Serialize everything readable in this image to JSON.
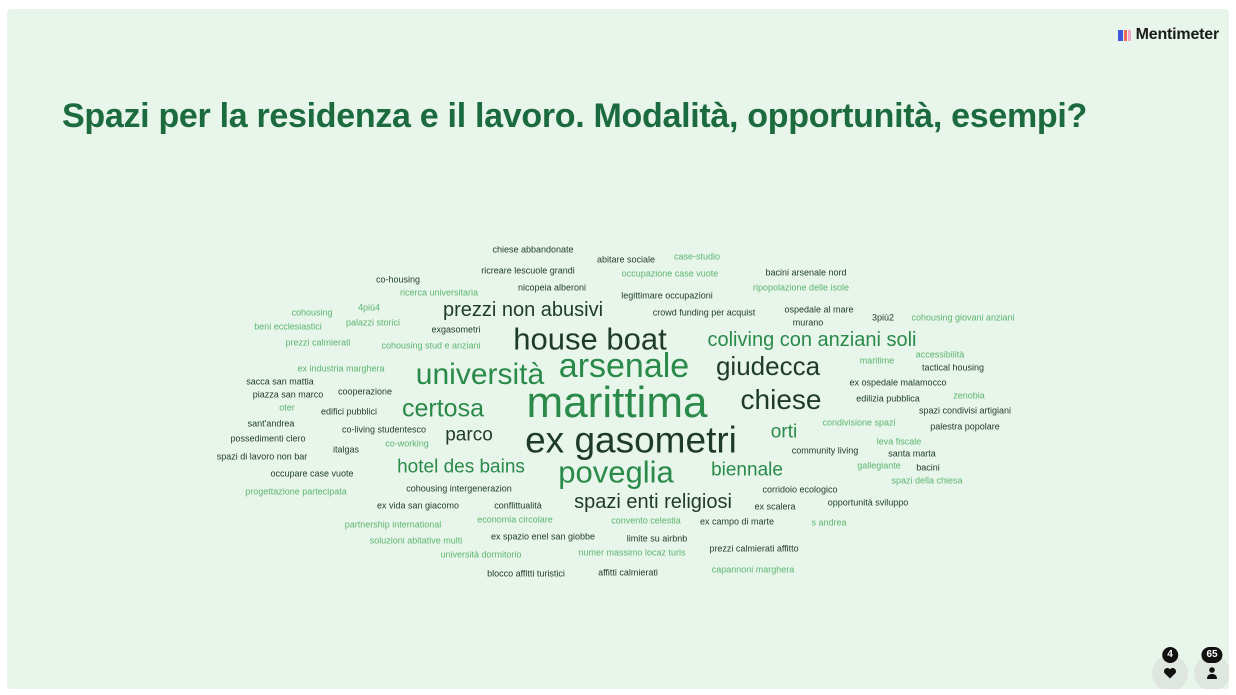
{
  "app": {
    "brand": "Mentimeter"
  },
  "slide": {
    "title": "Spazi per la residenza e il lavoro. Modalità, opportunità, esempi?"
  },
  "colors": {
    "background": "#e8f5ea",
    "title": "#1c6b3f",
    "dark": "#1e3b2a",
    "mid": "#2a8a4a",
    "light": "#5bb56f"
  },
  "words": [
    {
      "text": "marittima",
      "size": 44,
      "color": "mid"
    },
    {
      "text": "ex gasometri",
      "size": 37,
      "color": "dark"
    },
    {
      "text": "arsenale",
      "size": 34,
      "color": "mid"
    },
    {
      "text": "house boat",
      "size": 31,
      "color": "dark"
    },
    {
      "text": "poveglia",
      "size": 31,
      "color": "mid"
    },
    {
      "text": "università",
      "size": 30,
      "color": "mid"
    },
    {
      "text": "giudecca",
      "size": 26,
      "color": "dark"
    },
    {
      "text": "chiese",
      "size": 28,
      "color": "dark"
    },
    {
      "text": "certosa",
      "size": 25,
      "color": "mid"
    },
    {
      "text": "coliving con anziani soli",
      "size": 20,
      "color": "mid"
    },
    {
      "text": "prezzi non abusivi",
      "size": 20,
      "color": "dark"
    },
    {
      "text": "spazi enti religiosi",
      "size": 20,
      "color": "dark"
    },
    {
      "text": "hotel des bains",
      "size": 19,
      "color": "mid"
    },
    {
      "text": "parco",
      "size": 19,
      "color": "dark"
    },
    {
      "text": "biennale",
      "size": 19,
      "color": "mid"
    },
    {
      "text": "orti",
      "size": 19,
      "color": "mid"
    },
    {
      "text": "chiese abbandonate",
      "size": 9,
      "color": "dark"
    },
    {
      "text": "abitare sociale",
      "size": 9,
      "color": "dark"
    },
    {
      "text": "case-studio",
      "size": 9,
      "color": "light"
    },
    {
      "text": "ricreare lescuole grandi",
      "size": 9,
      "color": "dark"
    },
    {
      "text": "occupazione case vuote",
      "size": 9,
      "color": "light"
    },
    {
      "text": "bacini arsenale nord",
      "size": 9,
      "color": "dark"
    },
    {
      "text": "co-housing",
      "size": 9,
      "color": "dark"
    },
    {
      "text": "nicopeia alberoni",
      "size": 9,
      "color": "dark"
    },
    {
      "text": "ripopolazione delle isole",
      "size": 9,
      "color": "light"
    },
    {
      "text": "ricerca universitaria",
      "size": 9,
      "color": "light"
    },
    {
      "text": "legittimare occupazioni",
      "size": 9,
      "color": "dark"
    },
    {
      "text": "4più4",
      "size": 9,
      "color": "light"
    },
    {
      "text": "ospedale al mare",
      "size": 9,
      "color": "dark"
    },
    {
      "text": "cohousing",
      "size": 9,
      "color": "light"
    },
    {
      "text": "crowd funding per acquist",
      "size": 9,
      "color": "dark"
    },
    {
      "text": "3più2",
      "size": 9,
      "color": "dark"
    },
    {
      "text": "cohousing giovani anziani",
      "size": 9,
      "color": "light"
    },
    {
      "text": "beni ecclesiastici",
      "size": 9,
      "color": "light"
    },
    {
      "text": "palazzi storici",
      "size": 9,
      "color": "light"
    },
    {
      "text": "exgasometri",
      "size": 9,
      "color": "dark"
    },
    {
      "text": "murano",
      "size": 9,
      "color": "dark"
    },
    {
      "text": "prezzi calmierati",
      "size": 9,
      "color": "light"
    },
    {
      "text": "cohousing stud e anziani",
      "size": 9,
      "color": "light"
    },
    {
      "text": "accessibilità",
      "size": 9,
      "color": "light"
    },
    {
      "text": "maritime",
      "size": 9,
      "color": "light"
    },
    {
      "text": "tactical housing",
      "size": 9,
      "color": "dark"
    },
    {
      "text": "ex industria marghera",
      "size": 9,
      "color": "light"
    },
    {
      "text": "sacca san mattia",
      "size": 9,
      "color": "dark"
    },
    {
      "text": "ex ospedale malamocco",
      "size": 9,
      "color": "dark"
    },
    {
      "text": "piazza san marco",
      "size": 9,
      "color": "dark"
    },
    {
      "text": "cooperazione",
      "size": 9,
      "color": "dark"
    },
    {
      "text": "edilizia pubblica",
      "size": 9,
      "color": "dark"
    },
    {
      "text": "zenobia",
      "size": 9,
      "color": "light"
    },
    {
      "text": "oter",
      "size": 9,
      "color": "light"
    },
    {
      "text": "edifici pubblici",
      "size": 9,
      "color": "dark"
    },
    {
      "text": "spazi condivisi artigiani",
      "size": 9,
      "color": "dark"
    },
    {
      "text": "sant'andrea",
      "size": 9,
      "color": "dark"
    },
    {
      "text": "co-living studentesco",
      "size": 9,
      "color": "dark"
    },
    {
      "text": "condivisione spazi",
      "size": 9,
      "color": "light"
    },
    {
      "text": "palestra popolare",
      "size": 9,
      "color": "dark"
    },
    {
      "text": "possedimenti clero",
      "size": 9,
      "color": "dark"
    },
    {
      "text": "co-working",
      "size": 9,
      "color": "light"
    },
    {
      "text": "leva fiscale",
      "size": 9,
      "color": "light"
    },
    {
      "text": "italgas",
      "size": 9,
      "color": "dark"
    },
    {
      "text": "community living",
      "size": 9,
      "color": "dark"
    },
    {
      "text": "santa marta",
      "size": 9,
      "color": "dark"
    },
    {
      "text": "spazi di lavoro non bar",
      "size": 9,
      "color": "dark"
    },
    {
      "text": "gallegiante",
      "size": 9,
      "color": "light"
    },
    {
      "text": "bacini",
      "size": 9,
      "color": "dark"
    },
    {
      "text": "occupare case vuote",
      "size": 9,
      "color": "dark"
    },
    {
      "text": "spazi della chiesa",
      "size": 9,
      "color": "light"
    },
    {
      "text": "cohousing intergenerazion",
      "size": 9,
      "color": "dark"
    },
    {
      "text": "corridoio ecologico",
      "size": 9,
      "color": "dark"
    },
    {
      "text": "progettazione partecipata",
      "size": 9,
      "color": "light"
    },
    {
      "text": "ex vida san giacomo",
      "size": 9,
      "color": "dark"
    },
    {
      "text": "conflittualità",
      "size": 9,
      "color": "dark"
    },
    {
      "text": "ex scalera",
      "size": 9,
      "color": "dark"
    },
    {
      "text": "opportunità sviluppo",
      "size": 9,
      "color": "dark"
    },
    {
      "text": "economia circolare",
      "size": 9,
      "color": "light"
    },
    {
      "text": "convento celestia",
      "size": 9,
      "color": "light"
    },
    {
      "text": "ex campo di marte",
      "size": 9,
      "color": "dark"
    },
    {
      "text": "s andrea",
      "size": 9,
      "color": "light"
    },
    {
      "text": "partnership international",
      "size": 9,
      "color": "light"
    },
    {
      "text": "ex spazio enel san giobbe",
      "size": 9,
      "color": "dark"
    },
    {
      "text": "limite su airbnb",
      "size": 9,
      "color": "dark"
    },
    {
      "text": "soluzioni abitative multi",
      "size": 9,
      "color": "light"
    },
    {
      "text": "prezzi calmierati affitto",
      "size": 9,
      "color": "dark"
    },
    {
      "text": "università dormitorio",
      "size": 9,
      "color": "light"
    },
    {
      "text": "numer massimo locaz turis",
      "size": 9,
      "color": "light"
    },
    {
      "text": "blocco affitti turistici",
      "size": 9,
      "color": "dark"
    },
    {
      "text": "affitti calmierati",
      "size": 9,
      "color": "dark"
    },
    {
      "text": "capannoni marghera",
      "size": 9,
      "color": "light"
    }
  ],
  "reactions": [
    {
      "icon": "heart-icon",
      "count": "4"
    },
    {
      "icon": "person-icon",
      "count": "65"
    }
  ]
}
